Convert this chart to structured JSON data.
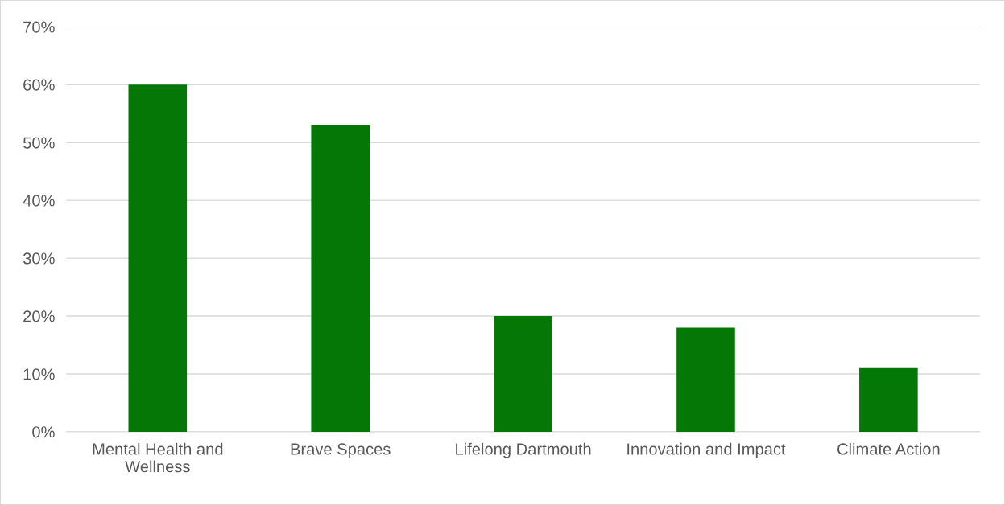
{
  "chart_data": {
    "type": "bar",
    "categories": [
      "Mental Health and Wellness",
      "Brave Spaces",
      "Lifelong Dartmouth",
      "Innovation and Impact",
      "Climate Action"
    ],
    "values": [
      60,
      53,
      20,
      18,
      11
    ],
    "color": "#047707",
    "ylim": [
      0,
      70
    ],
    "yticks": [
      {
        "value": 0,
        "label": "0%"
      },
      {
        "value": 10,
        "label": "10%"
      },
      {
        "value": 20,
        "label": "20%"
      },
      {
        "value": 30,
        "label": "30%"
      },
      {
        "value": 40,
        "label": "40%"
      },
      {
        "value": 50,
        "label": "50%"
      },
      {
        "value": 60,
        "label": "60%"
      },
      {
        "value": 70,
        "label": "70%"
      }
    ],
    "grid": "y",
    "legend": false
  }
}
